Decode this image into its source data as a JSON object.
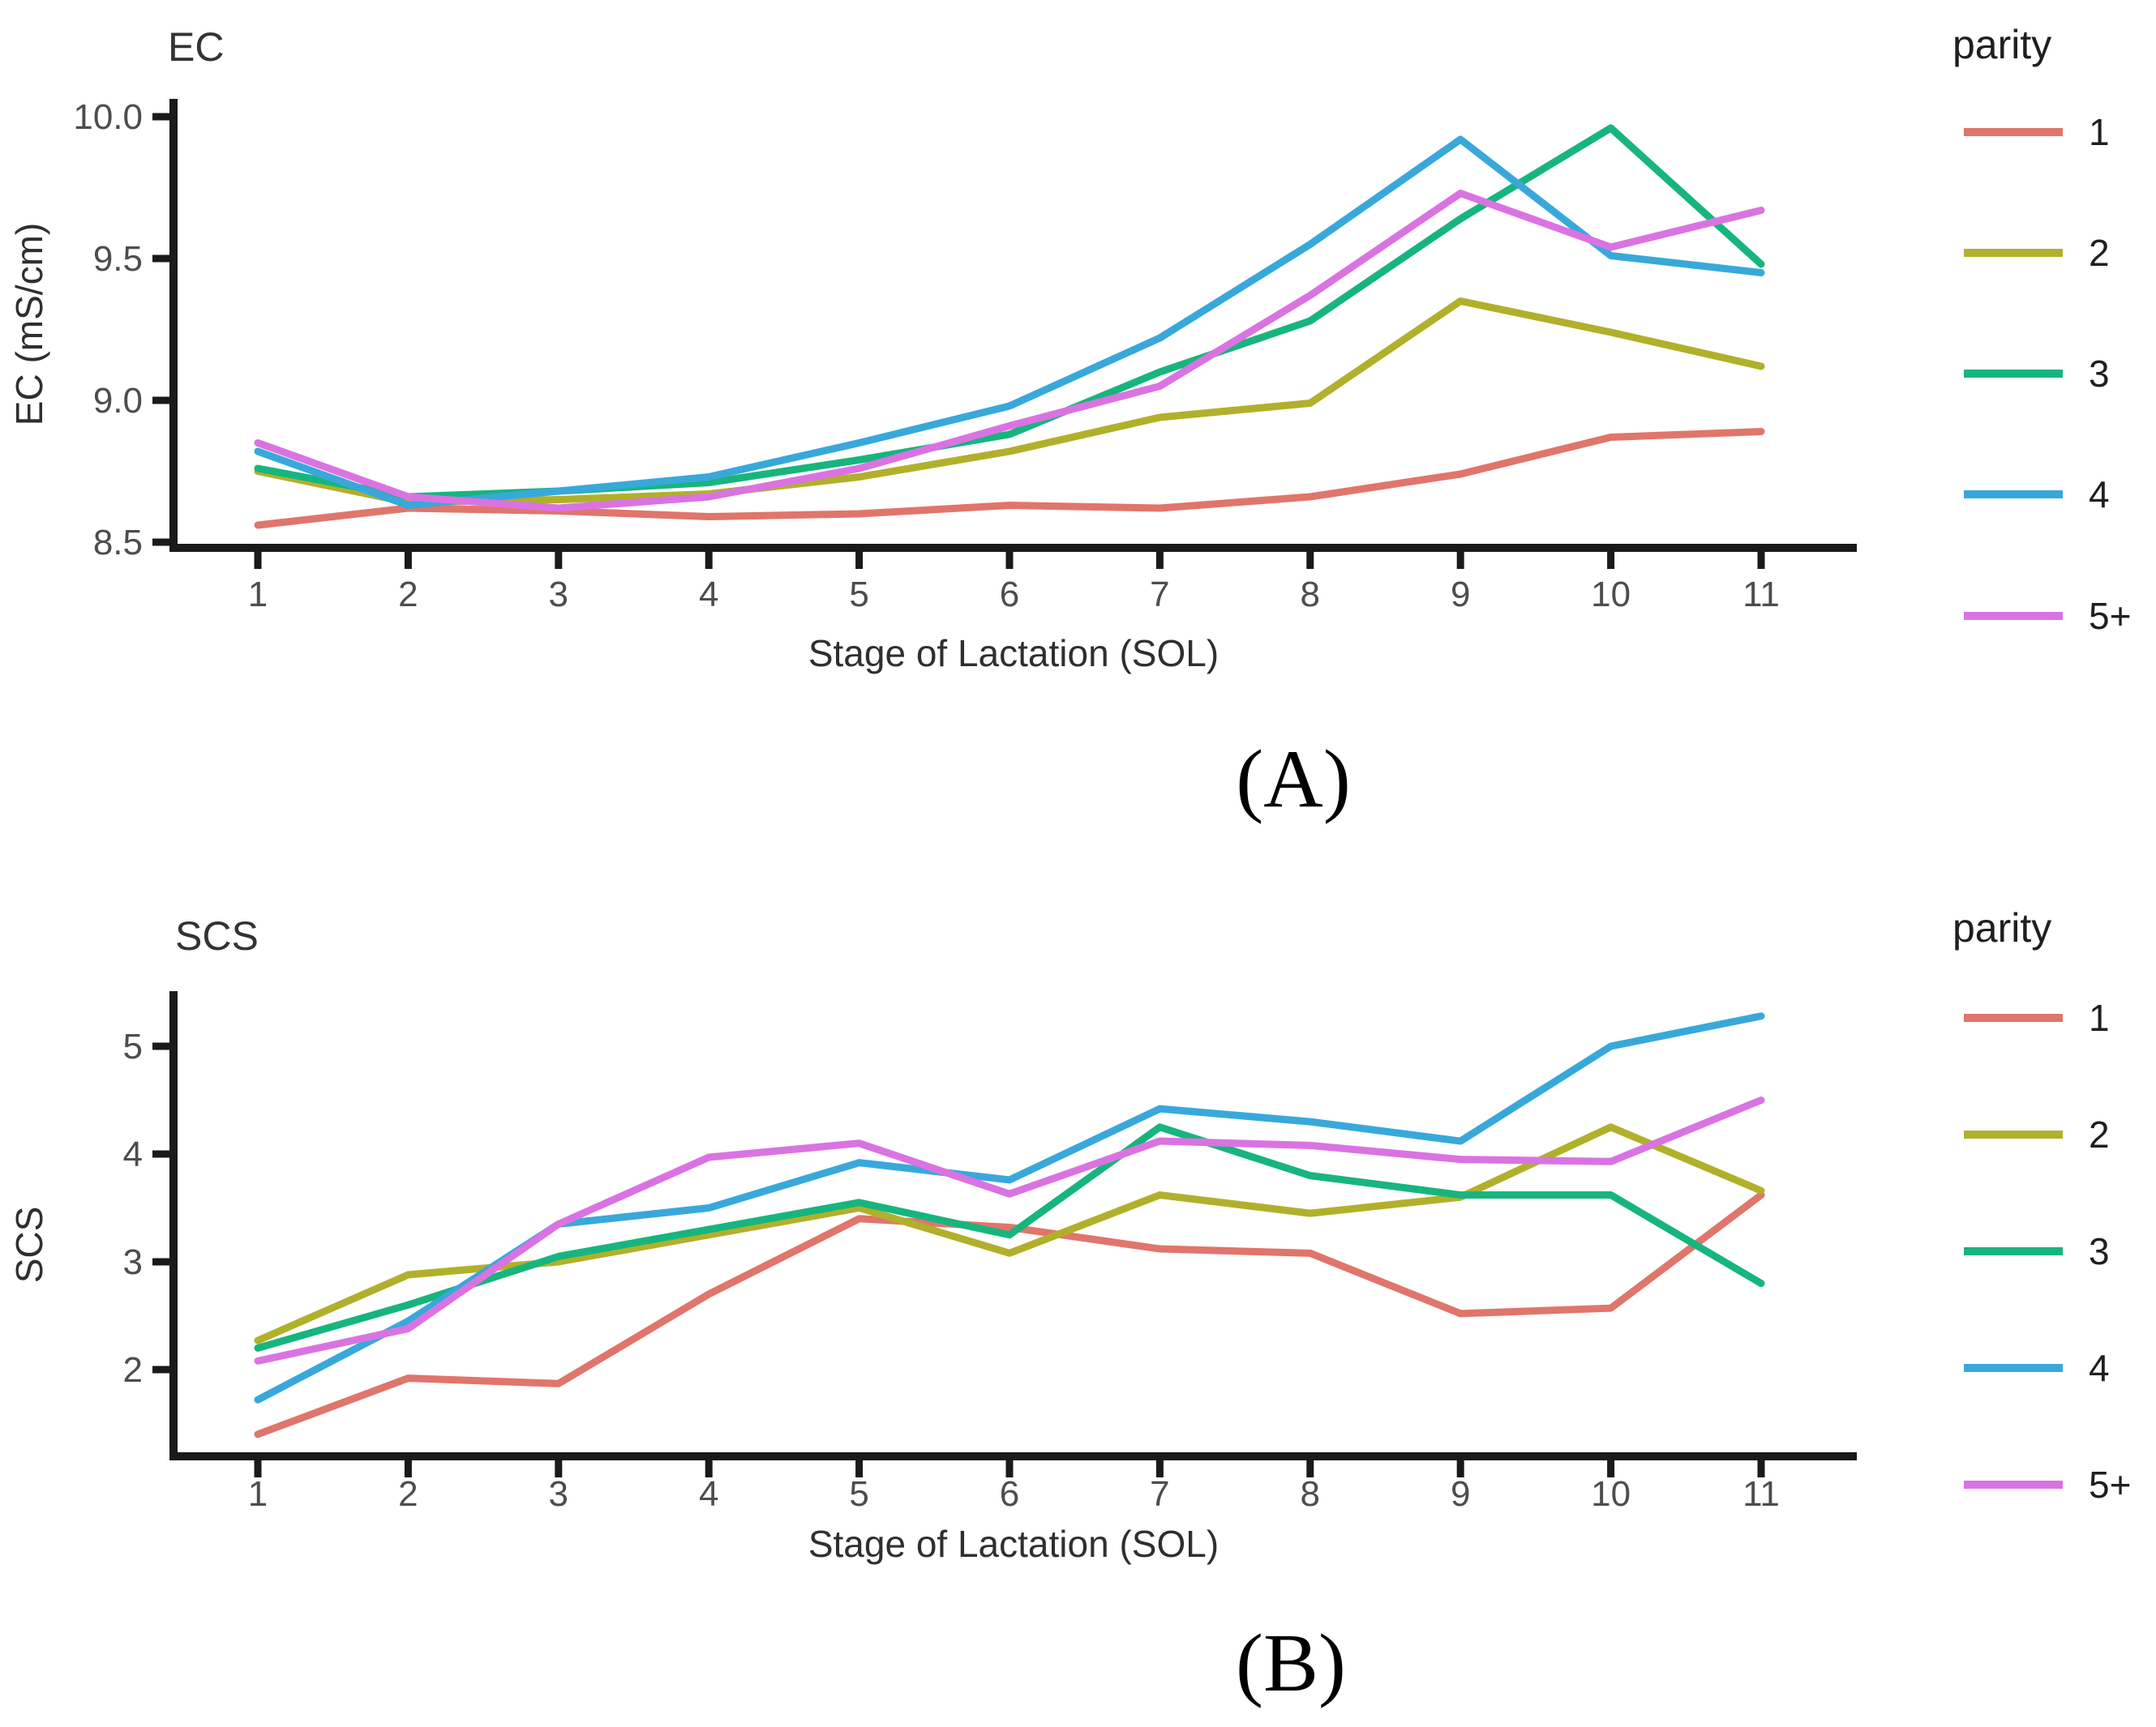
{
  "figure": {
    "background": "#ffffff",
    "axis_color": "#1a1a1a",
    "tick_label_color": "#4d4d4d",
    "text_color": "#2f2f2f"
  },
  "chart_data": [
    {
      "type": "line",
      "title": "EC",
      "xlabel": "Stage of Lactation (SOL)",
      "ylabel": "EC (mS/cm)",
      "panel_label": "(A)",
      "legend_title": "parity",
      "legend_position": "right",
      "grid": false,
      "x": [
        1,
        2,
        3,
        4,
        5,
        6,
        7,
        8,
        9,
        10,
        11
      ],
      "xtick_labels": [
        "1",
        "2",
        "3",
        "4",
        "5",
        "6",
        "7",
        "8",
        "9",
        "10",
        "11"
      ],
      "ylim": [
        8.48,
        10.06
      ],
      "yticks": [
        {
          "label": "8.5",
          "value": 8.5
        },
        {
          "label": "9.0",
          "value": 9.0
        },
        {
          "label": "9.5",
          "value": 9.5
        },
        {
          "label": "10.0",
          "value": 10.0
        }
      ],
      "series": [
        {
          "name": "1",
          "color": "#E0756C",
          "values": [
            8.56,
            8.62,
            8.61,
            8.59,
            8.6,
            8.63,
            8.62,
            8.66,
            8.74,
            8.87,
            8.89
          ]
        },
        {
          "name": "2",
          "color": "#B1B02B",
          "values": [
            8.75,
            8.64,
            8.65,
            8.67,
            8.73,
            8.82,
            8.94,
            8.99,
            9.35,
            9.24,
            9.12
          ]
        },
        {
          "name": "3",
          "color": "#17B57E",
          "values": [
            8.76,
            8.66,
            8.68,
            8.71,
            8.79,
            8.88,
            9.1,
            9.28,
            9.64,
            9.96,
            9.48
          ]
        },
        {
          "name": "4",
          "color": "#38A8DB",
          "values": [
            8.82,
            8.63,
            8.68,
            8.73,
            8.85,
            8.98,
            9.22,
            9.55,
            9.92,
            9.51,
            9.45
          ]
        },
        {
          "name": "5+",
          "color": "#DA73E2",
          "values": [
            8.85,
            8.66,
            8.62,
            8.66,
            8.76,
            8.91,
            9.05,
            9.37,
            9.73,
            9.54,
            9.67
          ]
        }
      ]
    },
    {
      "type": "line",
      "title": "SCS",
      "xlabel": "Stage of Lactation (SOL)",
      "ylabel": "SCS",
      "panel_label": "(B)",
      "legend_title": "parity",
      "legend_position": "right",
      "grid": false,
      "x": [
        1,
        2,
        3,
        4,
        5,
        6,
        7,
        8,
        9,
        10,
        11
      ],
      "xtick_labels": [
        "1",
        "2",
        "3",
        "4",
        "5",
        "6",
        "7",
        "8",
        "9",
        "10",
        "11"
      ],
      "ylim": [
        1.2,
        5.51
      ],
      "yticks": [
        {
          "label": "2",
          "value": 2
        },
        {
          "label": "3",
          "value": 3
        },
        {
          "label": "4",
          "value": 4
        },
        {
          "label": "5",
          "value": 5
        }
      ],
      "series": [
        {
          "name": "1",
          "color": "#E0756C",
          "values": [
            1.4,
            1.92,
            1.87,
            2.7,
            3.4,
            3.32,
            3.12,
            3.08,
            2.52,
            2.57,
            3.62
          ]
        },
        {
          "name": "2",
          "color": "#B1B02B",
          "values": [
            2.27,
            2.88,
            3.0,
            3.25,
            3.5,
            3.08,
            3.62,
            3.45,
            3.6,
            4.25,
            3.66
          ]
        },
        {
          "name": "3",
          "color": "#17B57E",
          "values": [
            2.2,
            2.6,
            3.05,
            3.3,
            3.55,
            3.25,
            4.25,
            3.8,
            3.62,
            3.62,
            2.8
          ]
        },
        {
          "name": "4",
          "color": "#38A8DB",
          "values": [
            1.72,
            2.45,
            3.35,
            3.5,
            3.92,
            3.76,
            4.42,
            4.3,
            4.12,
            5.0,
            5.28
          ]
        },
        {
          "name": "5+",
          "color": "#DA73E2",
          "values": [
            2.08,
            2.38,
            3.35,
            3.97,
            4.1,
            3.63,
            4.12,
            4.08,
            3.95,
            3.93,
            4.5
          ]
        }
      ]
    }
  ]
}
